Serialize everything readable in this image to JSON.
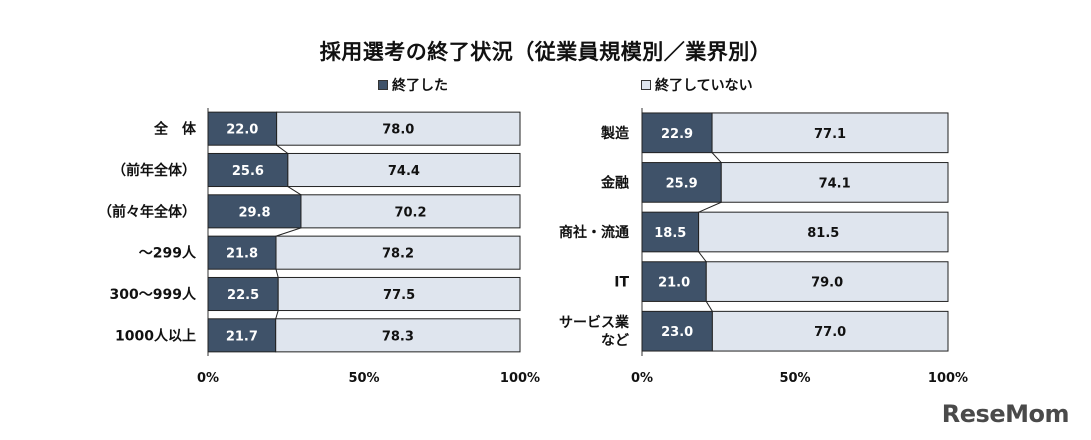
{
  "title": "採用選考の終了状況（従業員規模別／業界別）",
  "legend": [
    {
      "name": "終了した",
      "color": "#3f5269"
    },
    {
      "name": "終了していない",
      "color": "#dfe5ee"
    }
  ],
  "logo_text": "ReseMom",
  "chart_data": [
    {
      "type": "bar",
      "stacked": true,
      "orientation": "horizontal",
      "categories": [
        "全　体",
        "（前年全体）",
        "（前々年全体）",
        "～299人",
        "300～999人",
        "1000人以上"
      ],
      "series": [
        {
          "name": "終了した",
          "values": [
            22.0,
            25.6,
            29.8,
            21.8,
            22.5,
            21.7
          ]
        },
        {
          "name": "終了していない",
          "values": [
            78.0,
            74.4,
            70.2,
            78.2,
            77.5,
            78.3
          ]
        }
      ],
      "xlim": [
        0,
        100
      ],
      "xticks": [
        "0%",
        "50%",
        "100%"
      ]
    },
    {
      "type": "bar",
      "stacked": true,
      "orientation": "horizontal",
      "categories": [
        "製造",
        "金融",
        "商社・流通",
        "IT",
        "サービス業など"
      ],
      "series": [
        {
          "name": "終了した",
          "values": [
            22.9,
            25.9,
            18.5,
            21.0,
            23.0
          ]
        },
        {
          "name": "終了していない",
          "values": [
            77.1,
            74.1,
            81.5,
            79.0,
            77.0
          ]
        }
      ],
      "xlim": [
        0,
        100
      ],
      "xticks": [
        "0%",
        "50%",
        "100%"
      ]
    }
  ]
}
